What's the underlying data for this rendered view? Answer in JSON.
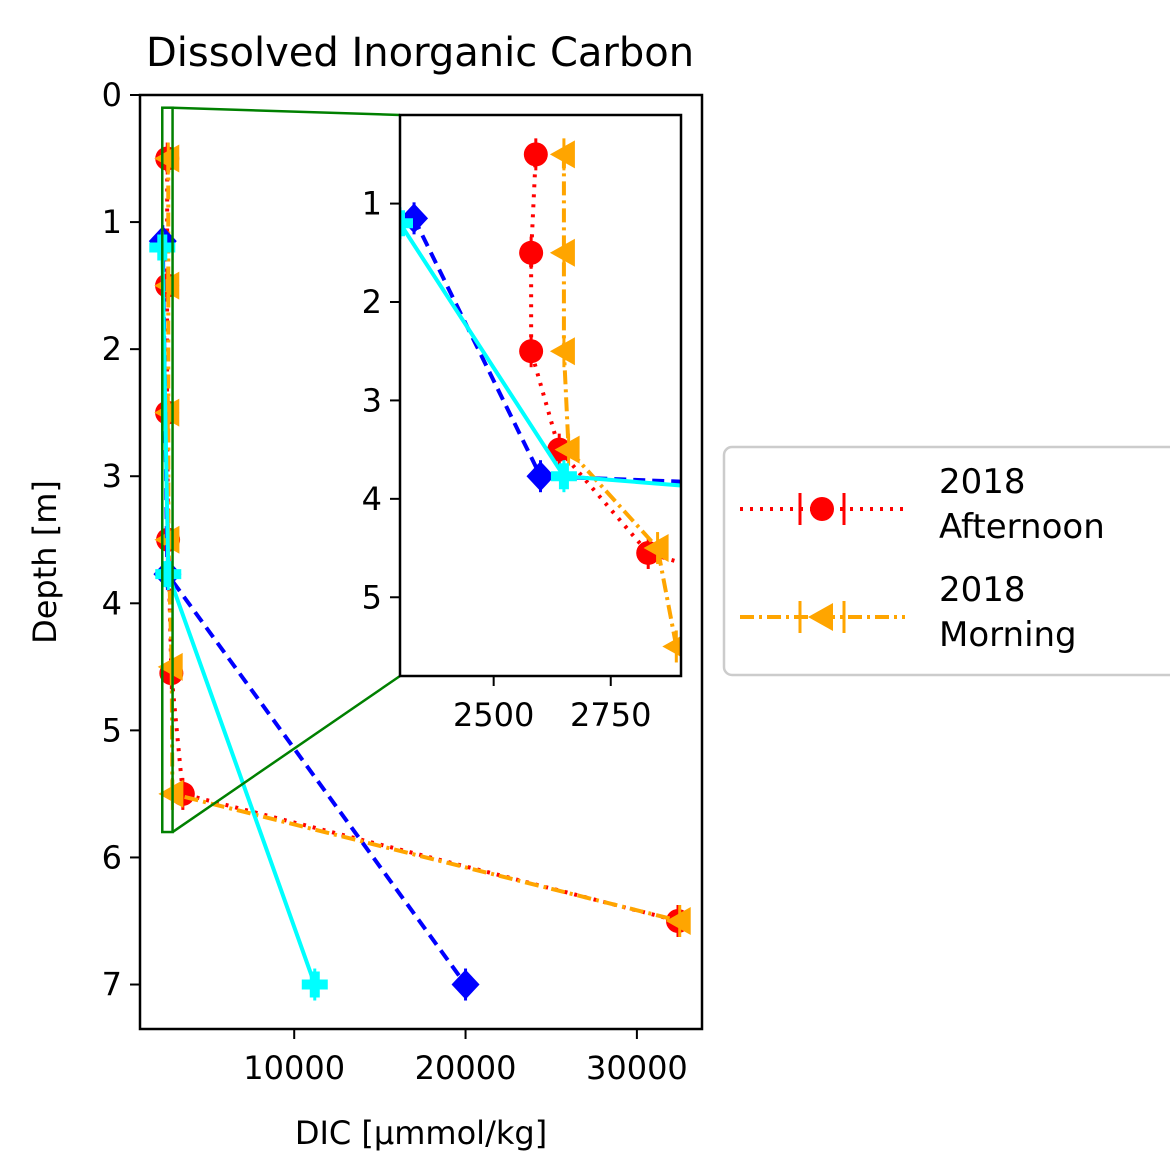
{
  "chart_data": {
    "type": "line",
    "title": "Dissolved Inorganic Carbon",
    "xlabel": "DIC [µmmol/kg]",
    "ylabel": "Depth [m]",
    "xlim": [
      1000,
      33800
    ],
    "ylim": [
      7.35,
      0
    ],
    "xticks": [
      10000,
      20000,
      30000
    ],
    "yticks": [
      0,
      1,
      2,
      3,
      4,
      5,
      6,
      7
    ],
    "legend_position": "right",
    "series": [
      {
        "name": "2018\nAfternoon",
        "color": "#ff0000",
        "linestyle": "dotted",
        "marker": "circle",
        "in_legend": true,
        "points": [
          [
            2590,
            0.5
          ],
          [
            2580,
            1.5
          ],
          [
            2580,
            2.5
          ],
          [
            2640,
            3.5
          ],
          [
            2830,
            4.55
          ],
          [
            3500,
            5.5
          ],
          [
            32400,
            6.5
          ]
        ]
      },
      {
        "name": "2018\nMorning",
        "color": "#ffa500",
        "linestyle": "dashdot",
        "marker": "triangle-left",
        "in_legend": true,
        "points": [
          [
            2650,
            0.5
          ],
          [
            2650,
            1.5
          ],
          [
            2650,
            2.5
          ],
          [
            2660,
            3.5
          ],
          [
            2850,
            4.5
          ],
          [
            2890,
            5.5
          ],
          [
            32500,
            6.5
          ]
        ]
      },
      {
        "name": "",
        "color": "#0000ff",
        "linestyle": "dashed",
        "marker": "diamond",
        "in_legend": false,
        "points": [
          [
            2330,
            1.15
          ],
          [
            2600,
            3.77
          ],
          [
            20000,
            7.0
          ]
        ]
      },
      {
        "name": "",
        "color": "#00ffff",
        "linestyle": "solid",
        "marker": "plus-filled",
        "in_legend": false,
        "points": [
          [
            2300,
            1.2
          ],
          [
            2650,
            3.77
          ],
          [
            11200,
            7.0
          ]
        ]
      }
    ],
    "inset": {
      "xlim": [
        2300,
        2900
      ],
      "ylim": [
        5.8,
        0.1
      ],
      "xticks": [
        2500,
        2750
      ],
      "yticks": [
        1,
        2,
        3,
        4,
        5
      ]
    }
  },
  "colors": {
    "zoom_box": "#008000"
  }
}
